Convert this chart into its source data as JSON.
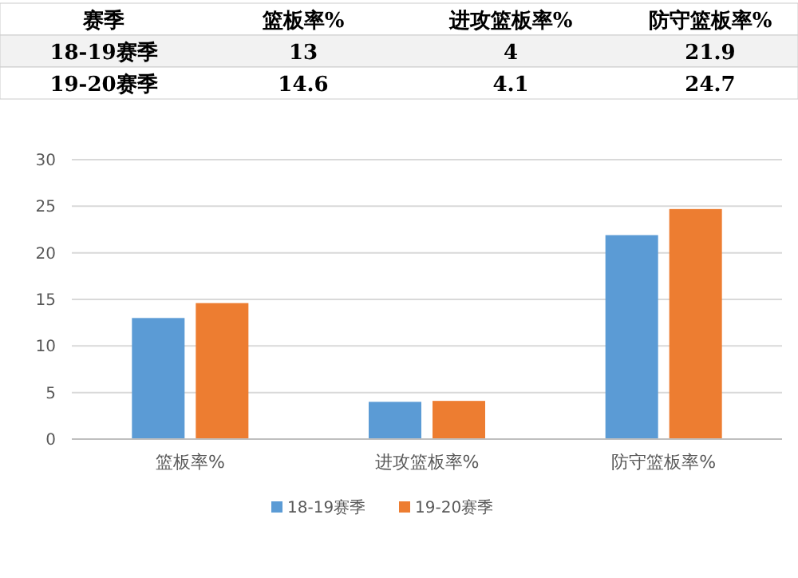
{
  "chart_data": {
    "type": "bar",
    "legend_title": "赛季",
    "categories": [
      "篮板率%",
      "进攻篮板率%",
      "防守篮板率%"
    ],
    "series": [
      {
        "name": "18-19赛季",
        "color": "#5b9bd5",
        "values": [
          13,
          4,
          21.9
        ]
      },
      {
        "name": "19-20赛季",
        "color": "#ed7d31",
        "values": [
          14.6,
          4.1,
          24.7
        ]
      }
    ],
    "ylim": [
      0,
      30
    ],
    "yticks": [
      0,
      5,
      10,
      15,
      20,
      25,
      30
    ],
    "grid": "y",
    "legend": "bottom",
    "data_labels": true
  }
}
